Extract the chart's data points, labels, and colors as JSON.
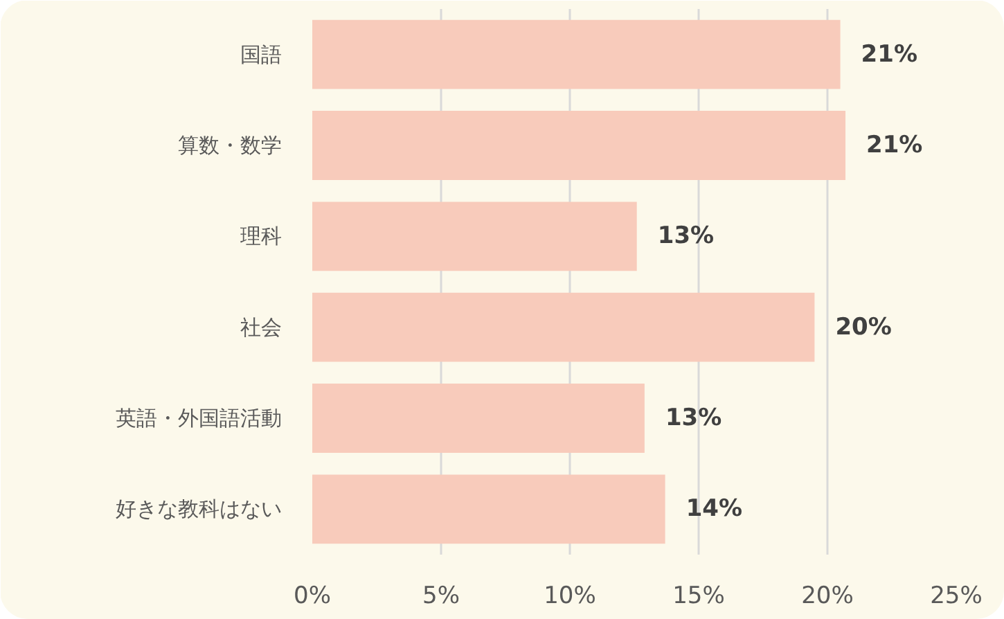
{
  "chart_data": {
    "type": "bar",
    "orientation": "horizontal",
    "categories": [
      "国語",
      "算数・数学",
      "理科",
      "社会",
      "英語・外国語活動",
      "好きな教科はない"
    ],
    "values": [
      20.5,
      20.7,
      12.6,
      19.5,
      12.9,
      13.7
    ],
    "value_labels": [
      "21%",
      "21%",
      "13%",
      "20%",
      "13%",
      "14%"
    ],
    "color": "#f8cbbb",
    "xlim": [
      0,
      25
    ],
    "xticks": [
      {
        "value": 0,
        "label": "0%"
      },
      {
        "value": 5,
        "label": "5%"
      },
      {
        "value": 10,
        "label": "10%"
      },
      {
        "value": 15,
        "label": "15%"
      },
      {
        "value": 20,
        "label": "20%"
      },
      {
        "value": 25,
        "label": "25%"
      }
    ],
    "grid": "x"
  }
}
